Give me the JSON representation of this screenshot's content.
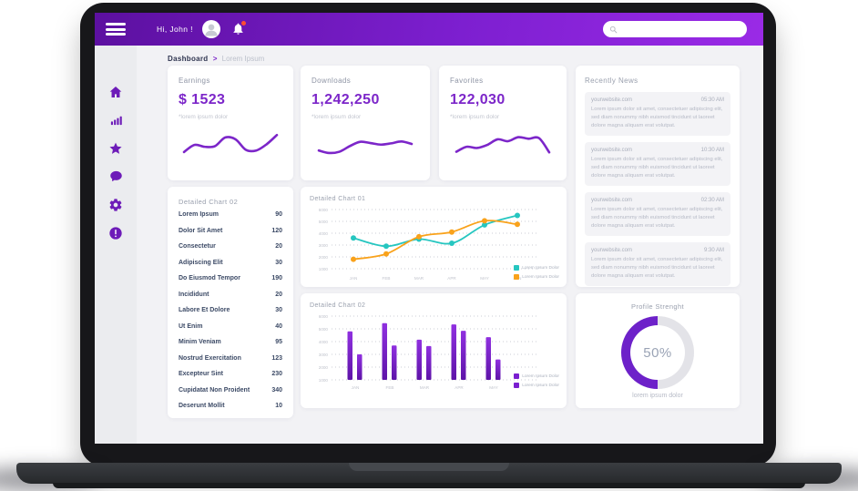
{
  "colors": {
    "accent": "#7c26c9",
    "topbar_gradient_start": "#5c10a0",
    "topbar_gradient_end": "#9a2ae6",
    "sidebar_icon": "#6d1bb8",
    "teal": "#26c6c0",
    "orange": "#f9a21b",
    "bar_purple": "#7a1fd0",
    "notification_dot": "#ff4d33",
    "donut_track": "#e3e3e8"
  },
  "topbar": {
    "greeting": "Hi, John !",
    "search_placeholder": ""
  },
  "breadcrumb": {
    "section": "Dashboard",
    "separator": ">",
    "page": "Lorem Ipsum"
  },
  "sidebar": {
    "items": [
      "home",
      "stats",
      "star",
      "messages",
      "settings",
      "alerts"
    ]
  },
  "stats": [
    {
      "title": "Earnings",
      "value": "$ 1523",
      "note": "*lorem ipsum dolor",
      "spark": [
        1.5,
        3.8,
        3.2,
        3.4,
        6.2,
        5.6,
        2.2,
        2.0,
        4.0,
        7.0
      ]
    },
    {
      "title": "Downloads",
      "value": "1,242,250",
      "note": "*lorem ipsum dolor",
      "spark": [
        2.0,
        1.2,
        1.6,
        3.4,
        4.8,
        4.4,
        3.9,
        4.3,
        4.9,
        4.1
      ]
    },
    {
      "title": "Favorites",
      "value": "122,030",
      "note": "*lorem ipsum dolor",
      "spark": [
        1.6,
        3.2,
        2.8,
        3.8,
        5.6,
        5.0,
        6.3,
        5.8,
        6.0,
        1.4
      ]
    }
  ],
  "news": {
    "title": "Recently News",
    "items": [
      {
        "source": "yourwebsite.com",
        "time": "05:30 AM",
        "body": "Lorem ipsum dolor sit amet, consectetuer adipiscing elit, sed diam nonummy nibh euismod tincidunt ut laoreet dolore magna aliquam erat volutpat."
      },
      {
        "source": "yourwebsite.com",
        "time": "10:30 AM",
        "body": "Lorem ipsum dolor sit amet, consectetuer adipiscing elit, sed diam nonummy nibh euismod tincidunt ut laoreet dolore magna aliquam erat volutpat."
      },
      {
        "source": "yourwebsite.com",
        "time": "02:30 AM",
        "body": "Lorem ipsum dolor sit amet, consectetuer adipiscing elit, sed diam nonummy nibh euismod tincidunt ut laoreet dolore magna aliquam erat volutpat."
      },
      {
        "source": "yourwebsite.com",
        "time": "9:30 AM",
        "body": "Lorem ipsum dolor sit amet, consectetuer adipiscing elit, sed diam nonummy nibh euismod tincidunt ut laoreet dolore magna aliquam erat volutpat."
      }
    ]
  },
  "table": {
    "title": "Detailed Chart 02",
    "rows": [
      {
        "label": "Lorem Ipsum",
        "value": "90"
      },
      {
        "label": "Dolor Sit Amet",
        "value": "120"
      },
      {
        "label": "Consectetur",
        "value": "20"
      },
      {
        "label": "Adipiscing Elit",
        "value": "30"
      },
      {
        "label": "Do Eiusmod Tempor",
        "value": "190"
      },
      {
        "label": "Incididunt",
        "value": "20"
      },
      {
        "label": "Labore Et Dolore",
        "value": "30"
      },
      {
        "label": "Ut Enim",
        "value": "40"
      },
      {
        "label": "Minim Veniam",
        "value": "95"
      },
      {
        "label": "Nostrud Exercitation",
        "value": "123"
      },
      {
        "label": "Excepteur Sint",
        "value": "230"
      },
      {
        "label": "Cupidatat Non Proident",
        "value": "340"
      },
      {
        "label": "Deserunt Mollit",
        "value": "10"
      }
    ]
  },
  "chart_data": [
    {
      "type": "line",
      "title": "Detailed Chart 01",
      "x": [
        "JAN",
        "FEB",
        "MAR",
        "APR",
        "MAY",
        "JUN"
      ],
      "yticks": [
        6000,
        5000,
        4000,
        3000,
        2000,
        1000
      ],
      "ylim": [
        1000,
        6000
      ],
      "grid": "dotted horizontal",
      "legend_position": "bottom-right",
      "series": [
        {
          "name": "Lorem Ipsum Dolor",
          "color": "#26c6c0",
          "values": [
            3600,
            2900,
            3500,
            3150,
            4700,
            5500
          ]
        },
        {
          "name": "Lorem Ipsum Dolor",
          "color": "#f9a21b",
          "values": [
            1800,
            2250,
            3700,
            4100,
            5050,
            4750
          ]
        }
      ]
    },
    {
      "type": "bar",
      "title": "Detailed Chart 02",
      "categories": [
        "JAN",
        "FEB",
        "MAR",
        "APR",
        "MAY"
      ],
      "yticks": [
        6000,
        5000,
        4000,
        3000,
        2000,
        1000
      ],
      "ylim": [
        1000,
        6000
      ],
      "grid": "dotted horizontal",
      "legend_position": "right",
      "series": [
        {
          "name": "Lorem Ipsum Dolor",
          "color": "#7a1fd0",
          "values": [
            4800,
            5450,
            4150,
            5350,
            4350
          ]
        },
        {
          "name": "Lorem Ipsum Dolor",
          "color": "#7a1fd0",
          "values": [
            3000,
            3700,
            3650,
            4850,
            2600
          ]
        }
      ]
    },
    {
      "type": "donut",
      "title": "Profile Strenght",
      "value": 50,
      "label": "50%",
      "note": "lorem ipsum dolor",
      "color": "#6d21c9",
      "track": "#e3e3e8"
    }
  ]
}
